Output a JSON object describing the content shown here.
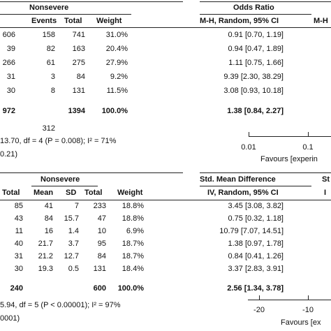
{
  "top": {
    "group_header": "Nonsevere",
    "stat_header": "Odds Ratio",
    "cut_right_header": "M-H",
    "subheader": {
      "events": "Events",
      "total": "Total",
      "weight": "Weight",
      "method": "M-H, Random, 95% CI"
    },
    "rows": [
      {
        "a": "606",
        "events": "158",
        "total": "741",
        "weight": "31.0%",
        "ci": "0.91 [0.70, 1.19]"
      },
      {
        "a": "39",
        "events": "82",
        "total": "163",
        "weight": "20.4%",
        "ci": "0.94 [0.47, 1.89]"
      },
      {
        "a": "266",
        "events": "61",
        "total": "275",
        "weight": "27.9%",
        "ci": "1.11 [0.75, 1.66]"
      },
      {
        "a": "31",
        "events": "3",
        "total": "84",
        "weight": "9.2%",
        "ci": "9.39 [2.30, 38.29]"
      },
      {
        "a": "30",
        "events": "8",
        "total": "131",
        "weight": "11.5%",
        "ci": "3.08 [0.93, 10.18]"
      }
    ],
    "total_row": {
      "a": "972",
      "total": "1394",
      "weight": "100.0%",
      "ci": "1.38 [0.84, 2.27]"
    },
    "events_total": "312",
    "heterogeneity": "13.70, df = 4 (P = 0.008); I² = 71%",
    "overall_effect": "0.21)",
    "axis": {
      "ticks": [
        "0.01",
        "0.1"
      ],
      "favours": "Favours [experin"
    }
  },
  "bottom": {
    "group_header": "Nonsevere",
    "stat_header": "Std. Mean Difference",
    "cut_right_header": "St",
    "cut_right_sub": "I",
    "subheader": {
      "total_a": "Total",
      "mean": "Mean",
      "sd": "SD",
      "total": "Total",
      "weight": "Weight",
      "method": "IV, Random, 95% CI"
    },
    "rows": [
      {
        "a": "85",
        "mean": "41",
        "sd": "7",
        "total": "233",
        "weight": "18.8%",
        "ci": "3.45 [3.08, 3.82]"
      },
      {
        "a": "43",
        "mean": "84",
        "sd": "15.7",
        "total": "47",
        "weight": "18.8%",
        "ci": "0.75 [0.32, 1.18]"
      },
      {
        "a": "11",
        "mean": "16",
        "sd": "1.4",
        "total": "10",
        "weight": "6.9%",
        "ci": "10.79 [7.07, 14.51]"
      },
      {
        "a": "40",
        "mean": "21.7",
        "sd": "3.7",
        "total": "95",
        "weight": "18.7%",
        "ci": "1.38 [0.97, 1.78]"
      },
      {
        "a": "31",
        "mean": "21.2",
        "sd": "12.7",
        "total": "84",
        "weight": "18.7%",
        "ci": "0.84 [0.41, 1.26]"
      },
      {
        "a": "30",
        "mean": "19.3",
        "sd": "0.5",
        "total": "131",
        "weight": "18.4%",
        "ci": "3.37 [2.83, 3.91]"
      }
    ],
    "total_row": {
      "a": "240",
      "total": "600",
      "weight": "100.0%",
      "ci": "2.56 [1.34, 3.78]"
    },
    "heterogeneity": "5.94, df = 5 (P < 0.00001); I² = 97%",
    "overall_effect": "0001)",
    "axis": {
      "ticks": [
        "-20",
        "-10"
      ],
      "favours": "Favours [ex"
    }
  }
}
